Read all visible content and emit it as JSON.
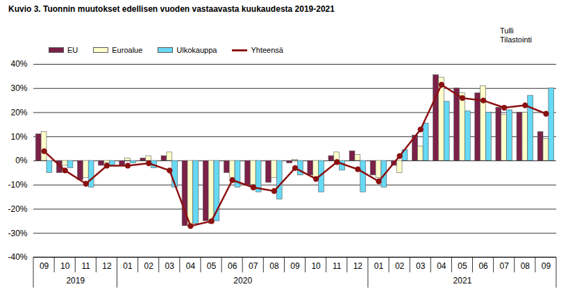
{
  "chart_data": {
    "type": "bar",
    "title": "Kuvio 3. Tuonnin muutokset edellisen vuoden vastaavasta kuukaudesta 2019-2021",
    "source": "Tulli\nTilastointi",
    "categories": [
      "09",
      "10",
      "11",
      "12",
      "01",
      "02",
      "03",
      "04",
      "05",
      "06",
      "07",
      "08",
      "09",
      "10",
      "11",
      "12",
      "01",
      "02",
      "03",
      "04",
      "05",
      "06",
      "07",
      "08",
      "09"
    ],
    "years": [
      {
        "label": "2019",
        "count": 4
      },
      {
        "label": "2020",
        "count": 12
      },
      {
        "label": "2021",
        "count": 9
      }
    ],
    "series": [
      {
        "name": "EU",
        "type": "bar",
        "color": "#7b2048",
        "values": [
          11,
          -5,
          -8,
          -2,
          -2,
          1,
          2,
          -27,
          -25,
          -5,
          -10,
          -9,
          -1,
          -6,
          2,
          4,
          -6,
          -2,
          10.5,
          35.5,
          30,
          28,
          22,
          20,
          12
        ]
      },
      {
        "name": "Euroalue",
        "type": "bar",
        "color": "#ffffcc",
        "values": [
          12,
          -2,
          -7,
          -1,
          1,
          2,
          3.5,
          -27,
          -26,
          -7,
          -10,
          -7,
          0.5,
          -7,
          3.5,
          2.5,
          -7,
          -5,
          6,
          34.5,
          28,
          31,
          19,
          20,
          9
        ]
      },
      {
        "name": "Ulkokauppa",
        "type": "bar",
        "color": "#66d9f5",
        "values": [
          -5,
          -3,
          -11,
          -2,
          -1,
          -3,
          -11,
          -26,
          -25,
          -11,
          -13,
          -16,
          -6,
          -13,
          -4,
          -13,
          -11,
          4.5,
          15.5,
          24.5,
          20.5,
          20,
          21,
          27,
          30
        ]
      },
      {
        "name": "Yhteensä",
        "type": "line",
        "color": "#8b1010",
        "marker": "dot",
        "values": [
          4,
          -4,
          -9.5,
          -2,
          -2,
          -1,
          -4,
          -27,
          -25,
          -8,
          -11,
          -12.5,
          -3,
          -7.5,
          -0.5,
          -3.5,
          -8.5,
          2,
          13,
          31.5,
          26,
          25,
          22,
          23,
          19.5
        ]
      }
    ],
    "ylim": [
      -40,
      40
    ],
    "yticks": [
      {
        "value": -40,
        "label": "-40%"
      },
      {
        "value": -30,
        "label": "-30%"
      },
      {
        "value": -20,
        "label": "-20%"
      },
      {
        "value": -10,
        "label": "-10%"
      },
      {
        "value": 0,
        "label": "0%"
      },
      {
        "value": 10,
        "label": "10%"
      },
      {
        "value": 20,
        "label": "20%"
      },
      {
        "value": 30,
        "label": "30%"
      },
      {
        "value": 40,
        "label": "40%"
      }
    ],
    "grid": true
  }
}
